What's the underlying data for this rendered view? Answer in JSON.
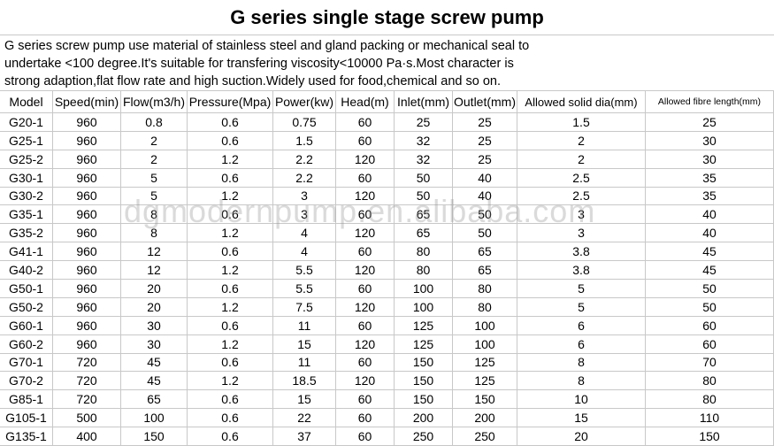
{
  "title": "G series single stage screw pump",
  "description": [
    "G series screw pump use material of stainless steel and gland packing or mechanical seal to",
    "undertake <100 degree.It's suitable for transfering viscosity<10000 Pa·s.Most character is",
    "strong adaption,flat flow rate and high suction.Widely used for food,chemical and so on."
  ],
  "table": {
    "header": [
      "Model",
      "Speed(min)",
      "Flow(m3/h)",
      "Pressure(Mpa)",
      "Power(kw)",
      "Head(m)",
      "Inlet(mm)",
      "Outlet(mm)",
      "Allowed solid dia(mm)",
      "Allowed fibre length(mm)"
    ],
    "rows": [
      [
        "G20-1",
        960,
        0.8,
        0.6,
        0.75,
        60,
        25,
        25,
        1.5,
        25
      ],
      [
        "G25-1",
        960,
        2,
        0.6,
        1.5,
        60,
        32,
        25,
        2,
        30
      ],
      [
        "G25-2",
        960,
        2,
        1.2,
        2.2,
        120,
        32,
        25,
        2,
        30
      ],
      [
        "G30-1",
        960,
        5,
        0.6,
        2.2,
        60,
        50,
        40,
        2.5,
        35
      ],
      [
        "G30-2",
        960,
        5,
        1.2,
        3,
        120,
        50,
        40,
        2.5,
        35
      ],
      [
        "G35-1",
        960,
        8,
        0.6,
        3,
        60,
        65,
        50,
        3,
        40
      ],
      [
        "G35-2",
        960,
        8,
        1.2,
        4,
        120,
        65,
        50,
        3,
        40
      ],
      [
        "G41-1",
        960,
        12,
        0.6,
        4,
        60,
        80,
        65,
        3.8,
        45
      ],
      [
        "G40-2",
        960,
        12,
        1.2,
        5.5,
        120,
        80,
        65,
        3.8,
        45
      ],
      [
        "G50-1",
        960,
        20,
        0.6,
        5.5,
        60,
        100,
        80,
        5,
        50
      ],
      [
        "G50-2",
        960,
        20,
        1.2,
        7.5,
        120,
        100,
        80,
        5,
        50
      ],
      [
        "G60-1",
        960,
        30,
        0.6,
        11,
        60,
        125,
        100,
        6,
        60
      ],
      [
        "G60-2",
        960,
        30,
        1.2,
        15,
        120,
        125,
        100,
        6,
        60
      ],
      [
        "G70-1",
        720,
        45,
        0.6,
        11,
        60,
        150,
        125,
        8,
        70
      ],
      [
        "G70-2",
        720,
        45,
        1.2,
        18.5,
        120,
        150,
        125,
        8,
        80
      ],
      [
        "G85-1",
        720,
        65,
        0.6,
        15,
        60,
        150,
        150,
        10,
        80
      ],
      [
        "G105-1",
        500,
        100,
        0.6,
        22,
        60,
        200,
        200,
        15,
        110
      ],
      [
        "G135-1",
        400,
        150,
        0.6,
        37,
        60,
        250,
        250,
        20,
        150
      ]
    ]
  },
  "watermark": "dgmodernpump.en.alibaba.com"
}
